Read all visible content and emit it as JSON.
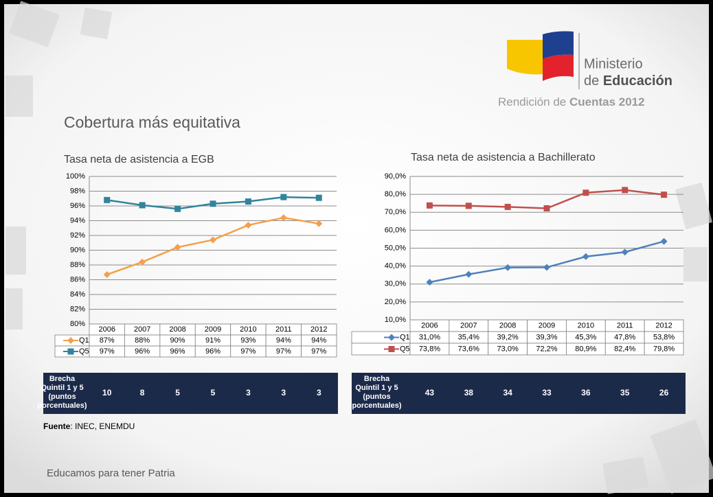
{
  "slide": {
    "ministry": "Ministerio",
    "ministry_de": "de ",
    "ministry_edu": "Educación",
    "report_a": "Rendición de ",
    "report_b": "Cuentas 2012",
    "title": "Cobertura más equitativa",
    "source_label": "Fuente",
    "source_text": ": INEC, ENEMDU",
    "footer": "Educamos para tener Patria"
  },
  "chart_data": [
    {
      "type": "line",
      "title": "Tasa neta de asistencia a EGB",
      "categories": [
        "2006",
        "2007",
        "2008",
        "2009",
        "2010",
        "2011",
        "2012"
      ],
      "series": [
        {
          "name": "Q1",
          "color": "#f4a04a",
          "marker": "diamond",
          "values": [
            86.7,
            88.4,
            90.4,
            91.4,
            93.4,
            94.4,
            93.6
          ],
          "value_labels": [
            "87%",
            "88%",
            "90%",
            "91%",
            "93%",
            "94%",
            "94%"
          ]
        },
        {
          "name": "Q5",
          "color": "#31849b",
          "marker": "square",
          "values": [
            96.8,
            96.1,
            95.6,
            96.3,
            96.6,
            97.2,
            97.1
          ],
          "value_labels": [
            "97%",
            "96%",
            "96%",
            "96%",
            "97%",
            "97%",
            "97%"
          ]
        }
      ],
      "ylim": [
        80,
        100
      ],
      "yticks": [
        {
          "value": 80,
          "label": "80%"
        },
        {
          "value": 82,
          "label": "82%"
        },
        {
          "value": 84,
          "label": "84%"
        },
        {
          "value": 86,
          "label": "86%"
        },
        {
          "value": 88,
          "label": "88%"
        },
        {
          "value": 90,
          "label": "90%"
        },
        {
          "value": 92,
          "label": "92%"
        },
        {
          "value": 94,
          "label": "94%"
        },
        {
          "value": 96,
          "label": "96%"
        },
        {
          "value": 98,
          "label": "98%"
        },
        {
          "value": 100,
          "label": "100%"
        }
      ],
      "grid": true,
      "gap_label": [
        "Brecha",
        "Quintil 1 y 5",
        "(puntos",
        "porcentuales)"
      ],
      "gap_values": [
        10,
        8,
        5,
        5,
        3,
        3,
        3
      ]
    },
    {
      "type": "line",
      "title": "Tasa neta de asistencia a Bachillerato",
      "categories": [
        "2006",
        "2007",
        "2008",
        "2009",
        "2010",
        "2011",
        "2012"
      ],
      "series": [
        {
          "name": "Q1",
          "color": "#4f81bd",
          "marker": "diamond",
          "values": [
            31.0,
            35.4,
            39.2,
            39.3,
            45.3,
            47.8,
            53.8
          ],
          "value_labels": [
            "31,0%",
            "35,4%",
            "39,2%",
            "39,3%",
            "45,3%",
            "47,8%",
            "53,8%"
          ]
        },
        {
          "name": "Q5",
          "color": "#c0504d",
          "marker": "square",
          "values": [
            73.8,
            73.6,
            73.0,
            72.2,
            80.9,
            82.4,
            79.8
          ],
          "value_labels": [
            "73,8%",
            "73,6%",
            "73,0%",
            "72,2%",
            "80,9%",
            "82,4%",
            "79,8%"
          ]
        }
      ],
      "ylim": [
        10,
        90
      ],
      "yticks": [
        {
          "value": 10,
          "label": "10,0%"
        },
        {
          "value": 20,
          "label": "20,0%"
        },
        {
          "value": 30,
          "label": "30,0%"
        },
        {
          "value": 40,
          "label": "40,0%"
        },
        {
          "value": 50,
          "label": "50,0%"
        },
        {
          "value": 60,
          "label": "60,0%"
        },
        {
          "value": 70,
          "label": "70,0%"
        },
        {
          "value": 80,
          "label": "80,0%"
        },
        {
          "value": 90,
          "label": "90,0%"
        }
      ],
      "grid": true,
      "gap_label": [
        "Brecha",
        "Quintil 1 y 5",
        "(puntos",
        "porcentuales)"
      ],
      "gap_values": [
        43,
        38,
        34,
        33,
        36,
        35,
        26
      ]
    }
  ]
}
